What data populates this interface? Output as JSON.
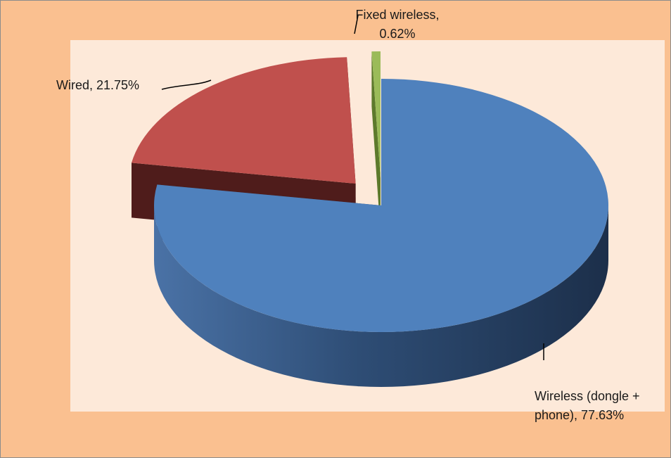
{
  "chart_data": {
    "type": "pie",
    "values": [
      77.63,
      21.75,
      0.62
    ],
    "value_labels": [
      "Wireless (dongle + phone), 77.63%",
      "Wired, 21.75%",
      "Fixed wireless, 0.62%"
    ],
    "colors": [
      "#4f81bd",
      "#c0504d",
      "#9bbb59"
    ]
  }
}
